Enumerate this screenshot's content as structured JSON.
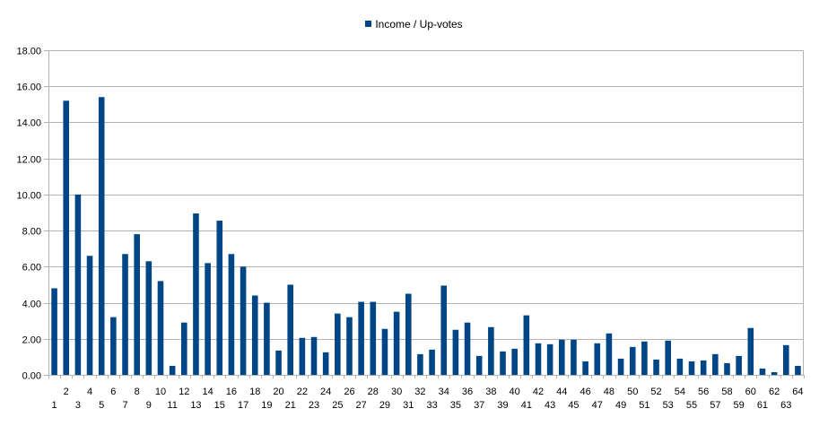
{
  "chart_data": {
    "type": "bar",
    "legend": {
      "position": "top",
      "entries": [
        "Income / Up-votes"
      ]
    },
    "series": [
      {
        "name": "Income / Up-votes",
        "color": "#004586",
        "values": [
          4.8,
          15.2,
          10.0,
          6.6,
          15.4,
          3.2,
          6.7,
          7.8,
          6.3,
          5.2,
          0.5,
          2.9,
          8.95,
          6.2,
          8.55,
          6.7,
          6.0,
          4.4,
          4.0,
          1.35,
          5.0,
          2.05,
          2.1,
          1.25,
          3.4,
          3.2,
          4.05,
          4.05,
          2.55,
          3.5,
          4.5,
          1.15,
          1.4,
          4.95,
          2.5,
          2.9,
          1.05,
          2.65,
          1.3,
          1.45,
          3.3,
          1.75,
          1.7,
          1.95,
          1.95,
          0.75,
          1.75,
          2.3,
          0.9,
          1.55,
          1.85,
          0.85,
          1.9,
          0.9,
          0.75,
          0.8,
          1.15,
          0.65,
          1.05,
          2.6,
          0.35,
          0.15,
          1.65,
          0.5
        ]
      }
    ],
    "categories": [
      "1",
      "2",
      "3",
      "4",
      "5",
      "6",
      "7",
      "8",
      "9",
      "10",
      "11",
      "12",
      "13",
      "14",
      "15",
      "16",
      "17",
      "18",
      "19",
      "20",
      "21",
      "22",
      "23",
      "24",
      "25",
      "26",
      "27",
      "28",
      "29",
      "30",
      "31",
      "32",
      "33",
      "34",
      "35",
      "36",
      "37",
      "38",
      "39",
      "40",
      "41",
      "42",
      "43",
      "44",
      "45",
      "46",
      "47",
      "48",
      "49",
      "50",
      "51",
      "52",
      "53",
      "54",
      "55",
      "56",
      "57",
      "58",
      "59",
      "60",
      "61",
      "62",
      "63",
      "64"
    ],
    "y_ticks": [
      "0.00",
      "2.00",
      "4.00",
      "6.00",
      "8.00",
      "10.00",
      "12.00",
      "14.00",
      "16.00",
      "18.00"
    ],
    "ylim": [
      0,
      18
    ],
    "grid": true,
    "title": "",
    "xlabel": "",
    "ylabel": ""
  }
}
